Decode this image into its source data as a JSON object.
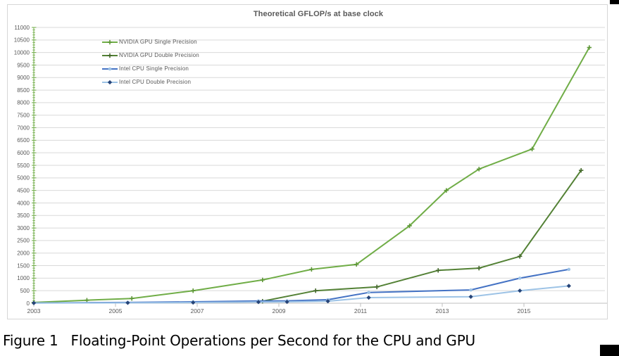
{
  "figure": {
    "caption_label": "Figure 1",
    "caption_text": "Floating-Point Operations per Second for the CPU and GPU"
  },
  "chart_data": {
    "type": "line",
    "title": "Theoretical GFLOP/s at base clock",
    "xlabel": "",
    "ylabel": "",
    "xlim": [
      2003,
      2016.95
    ],
    "ylim": [
      0,
      11000
    ],
    "ytick_step": 500,
    "yticks": [
      0,
      500,
      1000,
      1500,
      2000,
      2500,
      3000,
      3500,
      4000,
      4500,
      5000,
      5500,
      6000,
      6500,
      7000,
      7500,
      8000,
      8500,
      9000,
      9500,
      10000,
      10500,
      11000
    ],
    "xticks": [
      2003,
      2005,
      2007,
      2009,
      2011,
      2013,
      2015
    ],
    "grid": true,
    "legend_position": "top-left-inside",
    "colors": {
      "axis_green": "#70ad47",
      "grid": "#d9d9d9",
      "axis_gray": "#bfbfbf",
      "text": "#595959"
    },
    "series": [
      {
        "name": "NVIDIA GPU Single Precision",
        "color": "#70ad47",
        "marker": "cross",
        "marker_color": "#5d9636",
        "points": [
          [
            2003.0,
            30
          ],
          [
            2004.3,
            120
          ],
          [
            2005.4,
            190
          ],
          [
            2006.9,
            500
          ],
          [
            2008.6,
            930
          ],
          [
            2009.8,
            1350
          ],
          [
            2010.9,
            1550
          ],
          [
            2012.2,
            3090
          ],
          [
            2013.1,
            4500
          ],
          [
            2013.9,
            5350
          ],
          [
            2015.2,
            6150
          ],
          [
            2016.6,
            10200
          ]
        ]
      },
      {
        "name": "NVIDIA GPU Double Precision",
        "color": "#538135",
        "marker": "cross",
        "marker_color": "#44682b",
        "points": [
          [
            2008.6,
            80
          ],
          [
            2009.9,
            500
          ],
          [
            2011.4,
            650
          ],
          [
            2012.9,
            1310
          ],
          [
            2013.9,
            1400
          ],
          [
            2014.9,
            1870
          ],
          [
            2016.4,
            5300
          ]
        ]
      },
      {
        "name": "Intel CPU Single Precision",
        "color": "#4472c4",
        "marker": "circle",
        "marker_color": "#9dc3e6",
        "points": [
          [
            2003.0,
            12
          ],
          [
            2005.3,
            32
          ],
          [
            2006.9,
            55
          ],
          [
            2008.5,
            90
          ],
          [
            2009.2,
            95
          ],
          [
            2010.2,
            140
          ],
          [
            2011.2,
            430
          ],
          [
            2013.7,
            530
          ],
          [
            2014.9,
            1000
          ],
          [
            2016.1,
            1350
          ]
        ]
      },
      {
        "name": "Intel CPU Double Precision",
        "color": "#9dc3e6",
        "marker": "diamond",
        "marker_color": "#264478",
        "points": [
          [
            2003.0,
            6
          ],
          [
            2005.3,
            16
          ],
          [
            2006.9,
            28
          ],
          [
            2008.5,
            48
          ],
          [
            2009.2,
            55
          ],
          [
            2010.2,
            80
          ],
          [
            2011.2,
            225
          ],
          [
            2013.7,
            260
          ],
          [
            2014.9,
            500
          ],
          [
            2016.1,
            690
          ]
        ]
      }
    ]
  }
}
